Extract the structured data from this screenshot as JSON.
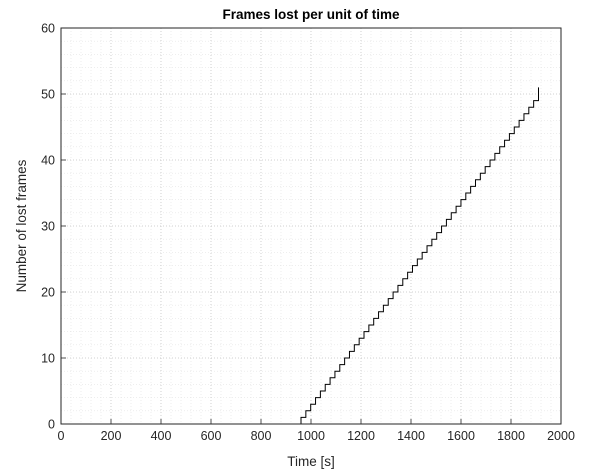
{
  "chart_data": {
    "type": "line",
    "title": "Frames lost per unit of time",
    "xlabel": "Time [s]",
    "ylabel": "Number of lost frames",
    "xlim": [
      0,
      2000
    ],
    "ylim": [
      0,
      60
    ],
    "xticks": [
      0,
      200,
      400,
      600,
      800,
      1000,
      1200,
      1400,
      1600,
      1800,
      2000
    ],
    "yticks": [
      0,
      10,
      20,
      30,
      40,
      50,
      60
    ],
    "grid": true,
    "minor_grid": true,
    "step_style": "staircase",
    "series": [
      {
        "color": "#000000",
        "x": [
          0,
          960,
          960,
          1910,
          1910
        ],
        "y": [
          0,
          0,
          1,
          50,
          51
        ]
      }
    ]
  }
}
